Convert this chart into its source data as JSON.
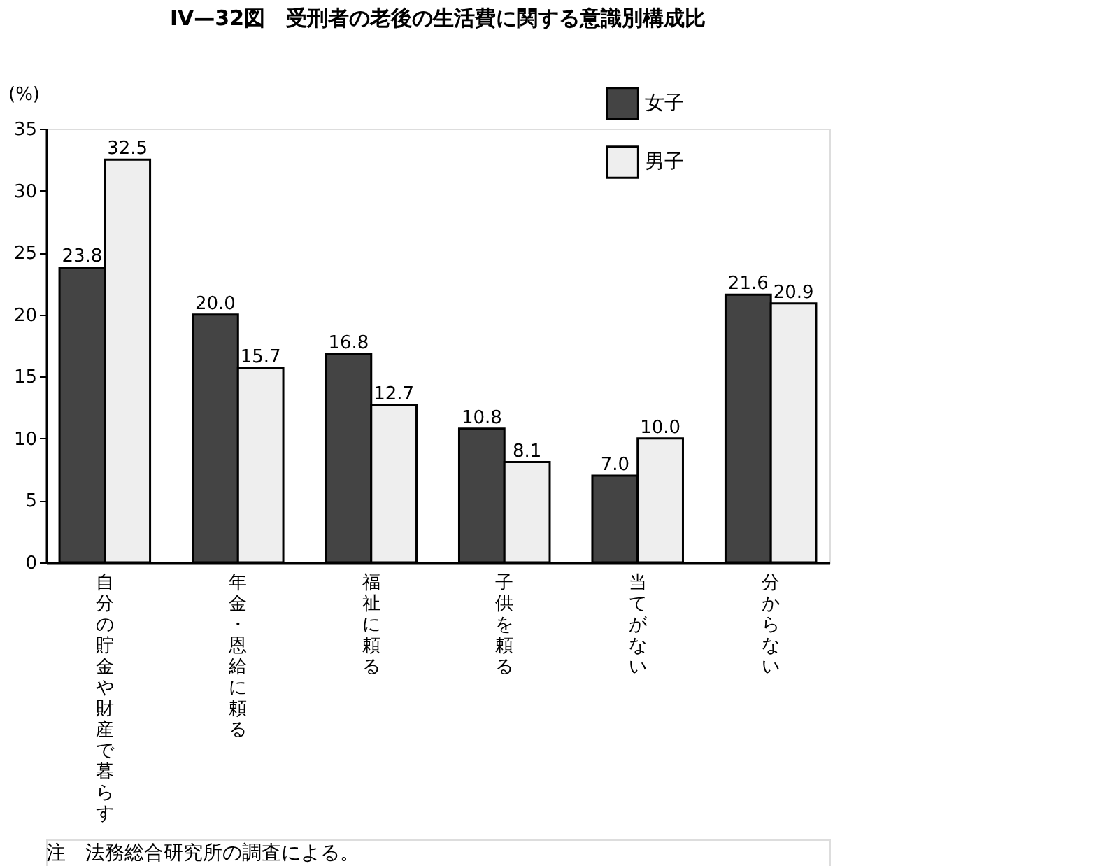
{
  "chart_data": {
    "type": "bar",
    "title": "IV—32図　受刑者の老後の生活費に関する意識別構成比",
    "ylabel": "(%)",
    "categories": [
      "自分の貯金や財産で暮らす",
      "年金・恩給に頼る",
      "福祉に頼る",
      "子供を頼る",
      "当てがない",
      "分からない"
    ],
    "series": [
      {
        "name": "女子",
        "color": "#444444",
        "values": [
          23.8,
          20.0,
          16.8,
          10.8,
          7.0,
          21.6
        ],
        "value_labels": [
          "23.8",
          "20.0",
          "16.8",
          "10.8",
          "7.0",
          "21.6"
        ]
      },
      {
        "name": "男子",
        "color": "#eeeeee",
        "values": [
          32.5,
          15.7,
          12.7,
          8.1,
          10.0,
          20.9
        ],
        "value_labels": [
          "32.5",
          "15.7",
          "12.7",
          "8.1",
          "10.0",
          "20.9"
        ]
      }
    ],
    "ylim": [
      0,
      35
    ],
    "yticks": [
      0,
      5,
      10,
      15,
      20,
      25,
      30,
      35
    ],
    "grid": false,
    "legend": "top right",
    "annotations": [
      "注　法務総合研究所の調査による。"
    ]
  }
}
